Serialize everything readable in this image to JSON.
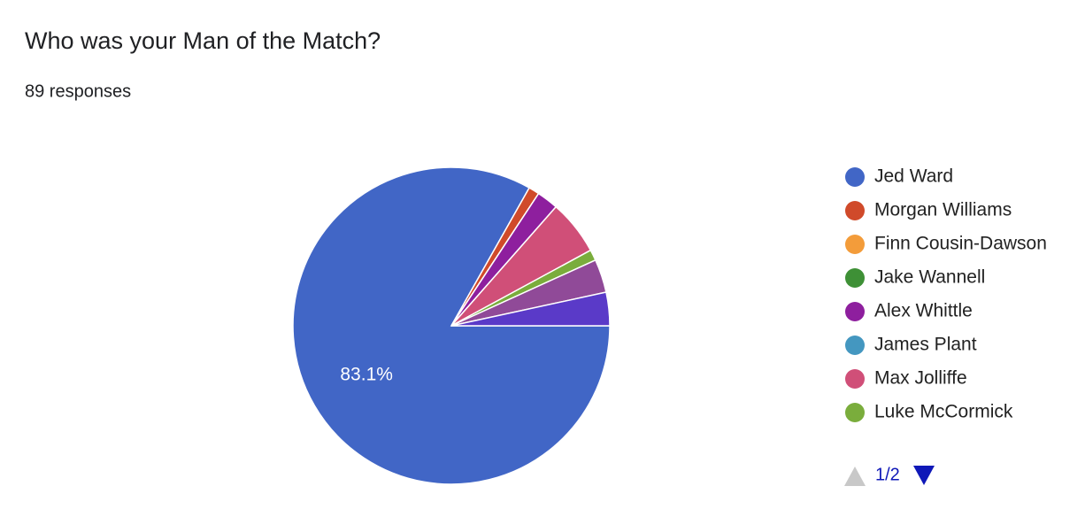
{
  "chart_data": {
    "type": "pie",
    "title": "Who was your Man of the Match?",
    "subtitle": "89 responses",
    "categories": [
      "Jed Ward",
      "Morgan Williams",
      "Finn Cousin-Dawson",
      "Jake Wannell",
      "Alex Whittle",
      "James Plant",
      "Max Jolliffe",
      "Luke McCormick",
      null,
      null
    ],
    "values": [
      83.1,
      1.1,
      0,
      0,
      2.2,
      0,
      5.6,
      1.1,
      3.4,
      3.4
    ],
    "value_labels": [
      "83.1%",
      null,
      null,
      null,
      null,
      null,
      null,
      null,
      null,
      null
    ],
    "colors": [
      "#4166c6",
      "#d04a2a",
      "#f39c3a",
      "#3e9036",
      "#8e1f9e",
      "#4497c0",
      "#d04f78",
      "#7aad3c",
      "#904a98",
      "#5a3ac8"
    ],
    "legend": "right",
    "legend_page": "1/2"
  }
}
